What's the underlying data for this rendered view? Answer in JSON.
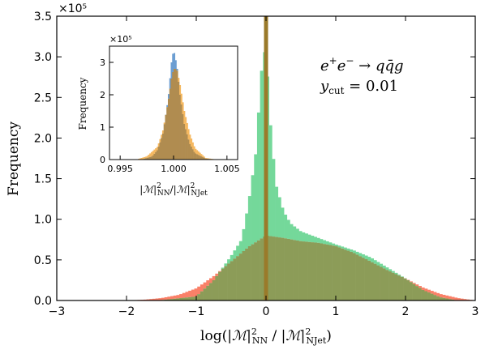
{
  "chart_data": [
    {
      "type": "histogram",
      "xlabel": "log(|ℳ|²NN / |ℳ|²NJet)",
      "ylabel": "Frequency",
      "xlim": [
        -3,
        3
      ],
      "ylim": [
        0,
        350000
      ],
      "y_multiplier_label": "×10⁵",
      "x_ticks": [
        "−3",
        "−2",
        "−1",
        "0",
        "1",
        "2",
        "3"
      ],
      "y_ticks": [
        "0.0",
        "0.5",
        "1.0",
        "1.5",
        "2.0",
        "2.5",
        "3.0",
        "3.5"
      ],
      "annotation": [
        "e⁺e⁻ → qq̄g",
        "ycut = 0.01"
      ],
      "colors": {
        "red": "#fa8068",
        "green": "#74d89a",
        "overlap": "#8c9c58",
        "spike": "#9a7a2a"
      },
      "series": [
        {
          "color": "red",
          "x": [
            -2.0,
            -1.75,
            -1.5,
            -1.25,
            -1.0,
            -0.75,
            -0.5,
            -0.25,
            0.0,
            0.25,
            0.5,
            0.75,
            1.0,
            1.25,
            1.5,
            1.75,
            2.0,
            2.25,
            2.5,
            2.75,
            3.0
          ],
          "y": [
            0,
            1000,
            3000,
            7000,
            15000,
            30000,
            48000,
            66000,
            80000,
            77000,
            73000,
            71000,
            67000,
            59000,
            48000,
            37000,
            27000,
            16000,
            8000,
            3000,
            0
          ]
        },
        {
          "color": "green",
          "x": [
            -2.0,
            -1.5,
            -1.0,
            -0.75,
            -0.5,
            -0.35,
            -0.25,
            -0.15,
            -0.1,
            -0.05,
            0.0,
            0.05,
            0.1,
            0.15,
            0.25,
            0.35,
            0.5,
            0.75,
            1.0,
            1.25,
            1.5,
            1.75,
            2.0,
            2.25,
            2.5,
            2.75
          ],
          "y": [
            0,
            500,
            5000,
            25000,
            55000,
            75000,
            120000,
            180000,
            240000,
            300000,
            310000,
            230000,
            180000,
            140000,
            110000,
            95000,
            85000,
            77000,
            69000,
            62000,
            53000,
            40000,
            27000,
            13000,
            4000,
            0
          ]
        }
      ],
      "spike": {
        "x": 0.0,
        "y": 350000
      }
    },
    {
      "type": "histogram",
      "xlabel": "|ℳ|²NN/|ℳ|²NJet",
      "ylabel": "Frequency",
      "xlim": [
        0.994,
        1.006
      ],
      "ylim": [
        0,
        350000
      ],
      "y_multiplier_label": "×10⁵",
      "x_ticks": [
        "0.995",
        "1.000",
        "1.005"
      ],
      "y_ticks": [
        "0",
        "1",
        "2",
        "3"
      ],
      "colors": {
        "blue": "#6c9ed2",
        "orange": "#f5b860",
        "overlap": "#b08c50"
      },
      "series": [
        {
          "color": "blue",
          "x": [
            0.997,
            0.998,
            0.9985,
            0.999,
            0.9995,
            0.9998,
            1.0,
            1.0003,
            1.0006,
            1.001,
            1.0015,
            1.002,
            1.003,
            1.004
          ],
          "y": [
            0,
            10000,
            30000,
            80000,
            190000,
            300000,
            340000,
            290000,
            200000,
            110000,
            50000,
            20000,
            3000,
            0
          ]
        },
        {
          "color": "orange",
          "x": [
            0.9965,
            0.9975,
            0.9985,
            0.999,
            0.9995,
            0.9998,
            1.0,
            1.0003,
            1.0006,
            1.001,
            1.0015,
            1.002,
            1.003,
            1.004
          ],
          "y": [
            0,
            10000,
            40000,
            90000,
            180000,
            250000,
            280000,
            280000,
            230000,
            150000,
            80000,
            35000,
            5000,
            0
          ]
        }
      ]
    }
  ]
}
